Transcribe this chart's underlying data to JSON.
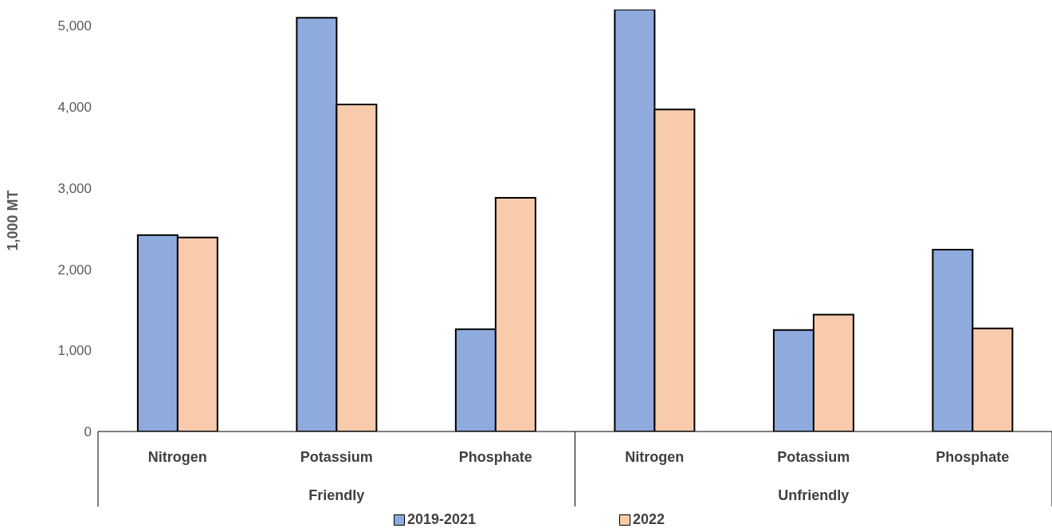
{
  "chart_data": {
    "type": "bar",
    "ylabel": "1,000 MT",
    "categories": [
      "Nitrogen",
      "Potassium",
      "Phosphate",
      "Nitrogen",
      "Potassium",
      "Phosphate"
    ],
    "series": [
      {
        "name": "2019-2021",
        "color": "#8faadc",
        "values": [
          2420,
          5100,
          1260,
          5200,
          1250,
          2240
        ]
      },
      {
        "name": "2022",
        "color": "#f8cbad",
        "values": [
          2390,
          4030,
          2880,
          3970,
          1440,
          1270
        ]
      }
    ],
    "annotations": [
      "Friendly",
      "Unfriendly"
    ],
    "ylim": [
      0,
      5200
    ],
    "yticks": [
      0,
      {
        "value": 1000,
        "label": "1,000"
      },
      {
        "value": 2000,
        "label": "2,000"
      },
      {
        "value": 3000,
        "label": "3,000"
      },
      {
        "value": 4000,
        "label": "4,000"
      },
      {
        "value": 5000,
        "label": "5,000"
      }
    ],
    "grid": false,
    "legend": "bottom"
  }
}
